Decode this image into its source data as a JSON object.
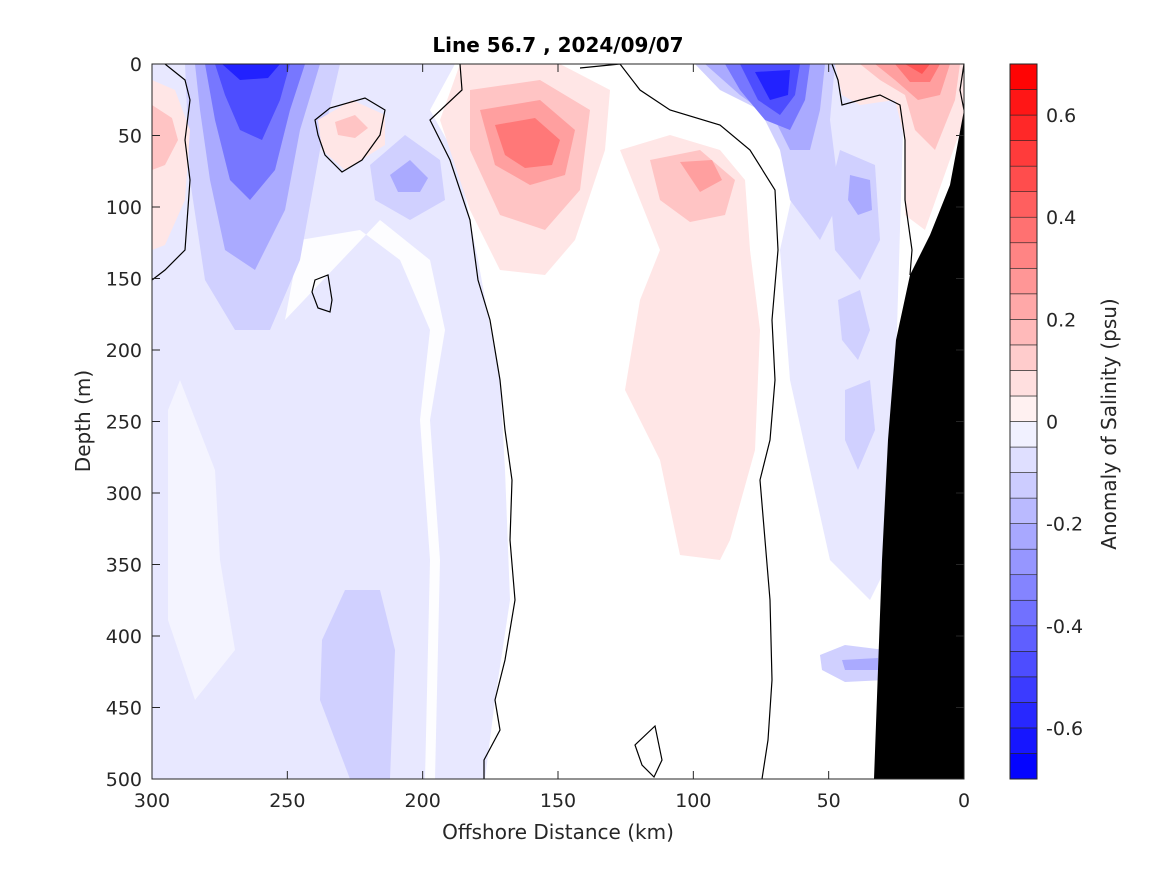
{
  "chart_data": {
    "type": "heatmap",
    "title": "Line 56.7 , 2024/09/07",
    "xlabel": "Offshore Distance (km)",
    "ylabel": "Depth (m)",
    "colorbar_label": "Anomaly of Salinity (psu)",
    "xlim": [
      300,
      0
    ],
    "x_reversed": true,
    "ylim": [
      0,
      500
    ],
    "y_reversed": true,
    "x_ticks": [
      300,
      250,
      200,
      150,
      100,
      50,
      0
    ],
    "y_ticks": [
      0,
      50,
      100,
      150,
      200,
      250,
      300,
      350,
      400,
      450,
      500
    ],
    "colorbar_ticks": [
      "0.6",
      "0.4",
      "0.2",
      "0",
      "-0.2",
      "-0.4",
      "-0.6"
    ],
    "colorbar_range": [
      -0.7,
      0.7
    ],
    "colorbar_step": 0.05,
    "colormap": {
      "negative": "#0000ff",
      "zero": "#ffffff",
      "positive": "#ff0000"
    },
    "contour_levels": [
      0
    ],
    "bathymetry_color": "#000000",
    "features": [
      {
        "sign": "negative",
        "x_center_km": 262,
        "depth_center_m": 50,
        "peak_psu": -0.5
      },
      {
        "sign": "negative",
        "x_center_km": 72,
        "depth_center_m": 20,
        "peak_psu": -0.6
      },
      {
        "sign": "positive",
        "x_center_km": 163,
        "depth_center_m": 50,
        "peak_psu": 0.35
      },
      {
        "sign": "positive",
        "x_center_km": 15,
        "depth_center_m": 10,
        "peak_psu": 0.5
      },
      {
        "sign": "positive",
        "x_center_km": 95,
        "depth_center_m": 75,
        "peak_psu": 0.2
      },
      {
        "sign": "positive",
        "x_center_km": 296,
        "depth_center_m": 50,
        "peak_psu": 0.2
      },
      {
        "sign": "positive",
        "x_center_km": 226,
        "depth_center_m": 40,
        "peak_psu": 0.15
      },
      {
        "sign": "negative",
        "x_center_km": 210,
        "depth_center_m": 80,
        "peak_psu": -0.15
      },
      {
        "sign": "negative",
        "x_center_km": 40,
        "depth_center_m": 90,
        "peak_psu": -0.2
      },
      {
        "sign": "negative",
        "x_center_km": 232,
        "depth_center_m": 430,
        "peak_psu": -0.12
      },
      {
        "sign": "negative",
        "x_center_km": 38,
        "depth_center_m": 420,
        "peak_psu": -0.25
      },
      {
        "sign": "positive",
        "x_center_km": 95,
        "depth_center_m": 300,
        "peak_psu": 0.08
      }
    ]
  }
}
